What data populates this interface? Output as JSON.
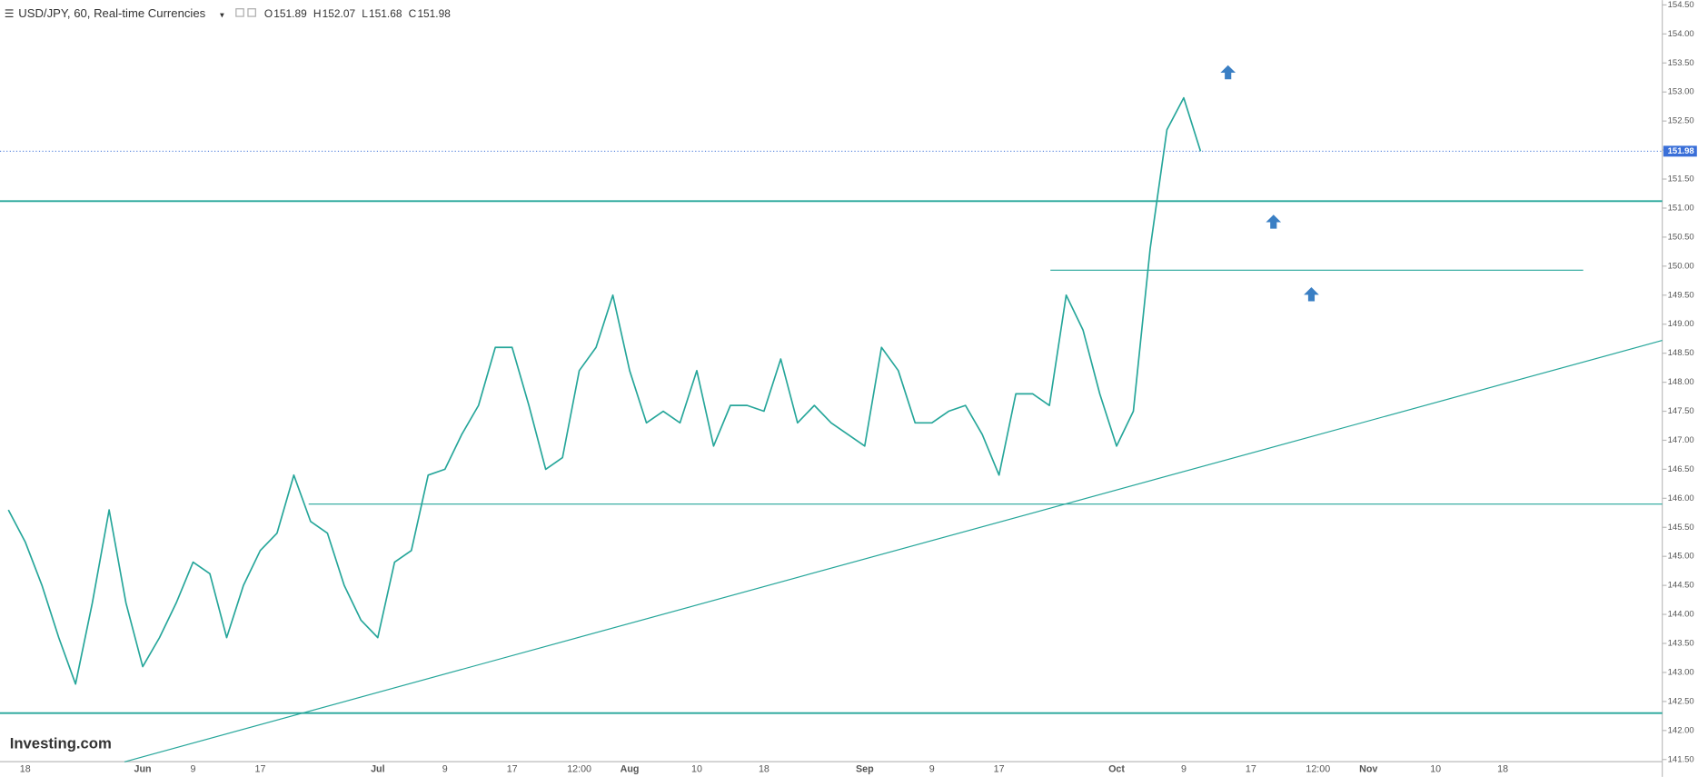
{
  "chart_data": {
    "type": "line",
    "title": "USD/JPY, 60, Real-time Currencies",
    "ohlc": [
      {
        "label": "O",
        "value": 151.89
      },
      {
        "label": "H",
        "value": 152.07
      },
      {
        "label": "L",
        "value": 151.68
      },
      {
        "label": "C",
        "value": 151.98
      }
    ],
    "source": "Investing.com",
    "color": "#26a69a",
    "categories": [
      null,
      "18",
      null,
      null,
      null,
      null,
      null,
      null,
      "Jun",
      null,
      null,
      "9",
      null,
      null,
      null,
      "17",
      null,
      null,
      null,
      null,
      null,
      null,
      "Jul",
      null,
      null,
      null,
      "9",
      null,
      null,
      null,
      "17",
      null,
      null,
      null,
      "12:00",
      null,
      null,
      "Aug",
      null,
      null,
      null,
      "10",
      null,
      null,
      null,
      "18",
      null,
      null,
      null,
      null,
      null,
      "Sep",
      null,
      null,
      null,
      "9",
      null,
      null,
      null,
      "17",
      null,
      null,
      null,
      null,
      null,
      null,
      "Oct",
      null,
      null,
      null,
      "9",
      null,
      null,
      null,
      "17",
      null,
      null,
      null,
      "12:00",
      null,
      null,
      "Nov",
      null,
      null,
      null,
      "10",
      null,
      null,
      null,
      "18",
      null,
      null,
      null,
      null,
      null,
      null,
      null,
      null,
      null
    ],
    "values": [
      145.8,
      145.25,
      144.5,
      143.6,
      142.8,
      144.2,
      145.8,
      144.2,
      143.1,
      143.6,
      144.2,
      144.9,
      144.7,
      143.6,
      144.5,
      145.1,
      145.4,
      146.4,
      145.6,
      145.4,
      144.5,
      143.9,
      143.6,
      144.9,
      145.1,
      146.4,
      146.5,
      147.1,
      147.6,
      148.6,
      148.6,
      147.6,
      146.5,
      146.7,
      148.2,
      148.6,
      149.5,
      148.2,
      147.3,
      147.5,
      147.3,
      148.2,
      146.9,
      147.6,
      147.6,
      147.5,
      148.4,
      147.3,
      147.6,
      147.3,
      147.1,
      146.9,
      148.6,
      148.2,
      147.3,
      147.3,
      147.5,
      147.6,
      147.1,
      146.4,
      147.8,
      147.8,
      147.6,
      149.5,
      148.9,
      147.8,
      146.9,
      147.5,
      150.3,
      152.35,
      152.9,
      151.98,
      null,
      null,
      null,
      null,
      null,
      null,
      null,
      null,
      null,
      null,
      null,
      null,
      null,
      null,
      null,
      null,
      null,
      null,
      null,
      null,
      null,
      null,
      null,
      null,
      null,
      null,
      null
    ],
    "levels": [
      151.12,
      149.93,
      145.9,
      142.3
    ],
    "level_color": "#26a69a",
    "trendline": [
      141.46,
      148.72
    ],
    "ylim": [
      141.5,
      154.5
    ],
    "yticks": [
      {
        "value": 141.5,
        "label": "141.50"
      },
      {
        "value": 142,
        "label": "142.00"
      },
      {
        "value": 142.5,
        "label": "142.50"
      },
      {
        "value": 143,
        "label": "143.00"
      },
      {
        "value": 143.5,
        "label": "143.50"
      },
      {
        "value": 144,
        "label": "144.00"
      },
      {
        "value": 144.5,
        "label": "144.50"
      },
      {
        "value": 145,
        "label": "145.00"
      },
      {
        "value": 145.5,
        "label": "145.50"
      },
      {
        "value": 146,
        "label": "146.00"
      },
      {
        "value": 146.5,
        "label": "146.50"
      },
      {
        "value": 147,
        "label": "147.00"
      },
      {
        "value": 147.5,
        "label": "147.50"
      },
      {
        "value": 148,
        "label": "148.00"
      },
      {
        "value": 148.5,
        "label": "148.50"
      },
      {
        "value": 149,
        "label": "149.00"
      },
      {
        "value": 149.5,
        "label": "149.50"
      },
      {
        "value": 150,
        "label": "150.00"
      },
      {
        "value": 150.5,
        "label": "150.50"
      },
      {
        "value": 151,
        "label": "151.00"
      },
      {
        "value": 151.5,
        "label": "151.50"
      },
      {
        "value": 152,
        "label": "152.00"
      },
      {
        "value": 152.5,
        "label": "152.50"
      },
      {
        "value": 153,
        "label": "153.00"
      },
      {
        "value": 153.5,
        "label": "153.50"
      },
      {
        "value": 154,
        "label": "154.00"
      },
      {
        "value": 154.5,
        "label": "154.50"
      }
    ],
    "grid": false
  }
}
